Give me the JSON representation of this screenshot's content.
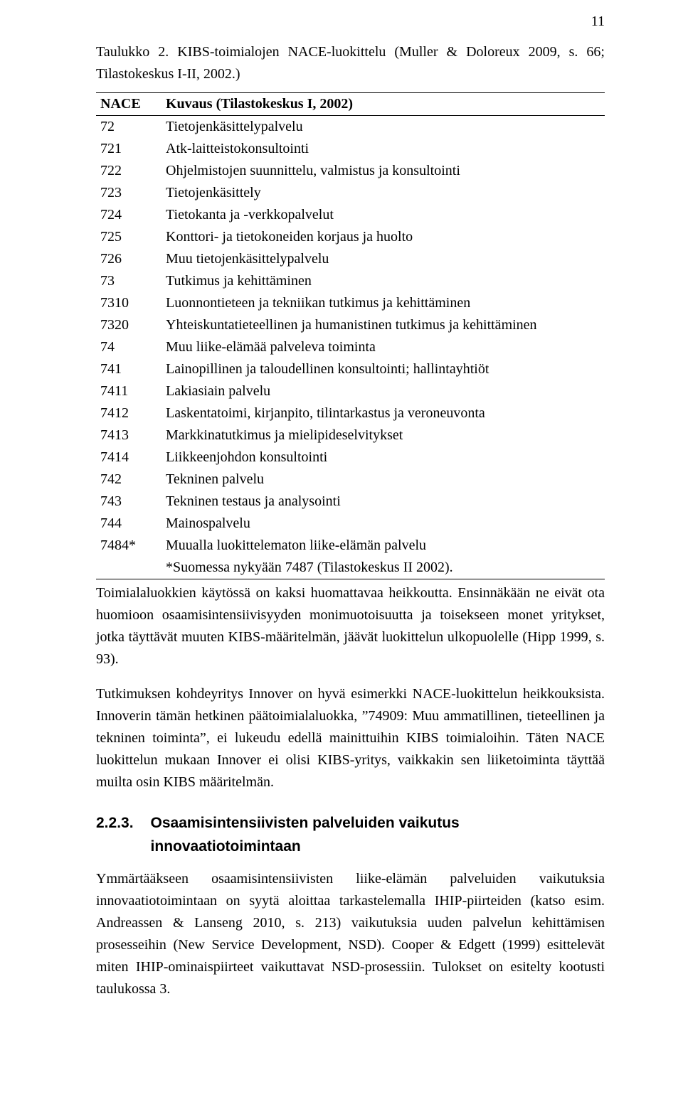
{
  "page_number": "11",
  "caption": "Taulukko 2. KIBS-toimialojen NACE-luokittelu (Muller & Doloreux 2009, s. 66; Tilastokeskus I-II, 2002.)",
  "table": {
    "header": {
      "code": "NACE",
      "desc": "Kuvaus (Tilastokeskus I, 2002)"
    },
    "rows": [
      {
        "code": "72",
        "desc": "Tietojenkäsittelypalvelu"
      },
      {
        "code": "721",
        "desc": "Atk-laitteistokonsultointi"
      },
      {
        "code": "722",
        "desc": "Ohjelmistojen suunnittelu, valmistus ja konsultointi"
      },
      {
        "code": "723",
        "desc": "Tietojenkäsittely"
      },
      {
        "code": "724",
        "desc": "Tietokanta ja -verkkopalvelut"
      },
      {
        "code": "725",
        "desc": "Konttori- ja tietokoneiden korjaus ja huolto"
      },
      {
        "code": "726",
        "desc": "Muu tietojenkäsittelypalvelu"
      },
      {
        "code": "73",
        "desc": "Tutkimus ja kehittäminen"
      },
      {
        "code": "7310",
        "desc": "Luonnontieteen ja tekniikan tutkimus ja kehittäminen"
      },
      {
        "code": "7320",
        "desc": "Yhteiskuntatieteellinen ja humanistinen tutkimus ja kehittäminen"
      },
      {
        "code": "74",
        "desc": "Muu liike-elämää palveleva toiminta"
      },
      {
        "code": "741",
        "desc": "Lainopillinen ja taloudellinen konsultointi; hallintayhtiöt"
      },
      {
        "code": "7411",
        "desc": "Lakiasiain palvelu"
      },
      {
        "code": "7412",
        "desc": "Laskentatoimi, kirjanpito, tilintarkastus ja veroneuvonta"
      },
      {
        "code": "7413",
        "desc": "Markkinatutkimus ja mielipideselvitykset"
      },
      {
        "code": "7414",
        "desc": "Liikkeenjohdon konsultointi"
      },
      {
        "code": "742",
        "desc": "Tekninen palvelu"
      },
      {
        "code": "743",
        "desc": "Tekninen testaus ja analysointi"
      },
      {
        "code": "744",
        "desc": "Mainospalvelu"
      },
      {
        "code": "7484*",
        "desc": "Muualla luokittelematon liike-elämän palvelu"
      }
    ],
    "footnote": "*Suomessa nykyään 7487 (Tilastokeskus II 2002)."
  },
  "para1": "Toimialaluokkien käytössä on kaksi huomattavaa heikkoutta. Ensinnäkään ne eivät ota huomioon osaamisintensiivisyyden monimuotoisuutta ja toisekseen monet yritykset, jotka täyttävät muuten KIBS-määritelmän, jäävät luokittelun ulkopuolelle (Hipp 1999, s. 93).",
  "para2": "Tutkimuksen kohdeyritys Innover on hyvä esimerkki NACE-luokittelun heikkouksista. Innoverin tämän hetkinen päätoimialaluokka, ”74909: Muu ammatillinen, tieteellinen ja tekninen toiminta”, ei lukeudu edellä mainittuihin KIBS toimialoihin. Täten NACE luokittelun mukaan Innover ei olisi KIBS-yritys, vaikkakin sen liiketoiminta täyttää muilta osin KIBS määritelmän.",
  "section": {
    "num": "2.2.3.",
    "title": "Osaamisintensiivisten palveluiden vaikutus innovaatiotoimintaan"
  },
  "para3": "Ymmärtääkseen osaamisintensiivisten liike-elämän palveluiden vaikutuksia innovaatiotoimintaan on syytä aloittaa tarkastelemalla IHIP-piirteiden (katso esim. Andreassen & Lanseng 2010, s. 213) vaikutuksia uuden palvelun kehittämisen prosesseihin (New Service Development, NSD). Cooper & Edgett (1999) esittelevät miten IHIP-ominaispiirteet vaikuttavat NSD-prosessiin. Tulokset on esitelty kootusti taulukossa 3."
}
